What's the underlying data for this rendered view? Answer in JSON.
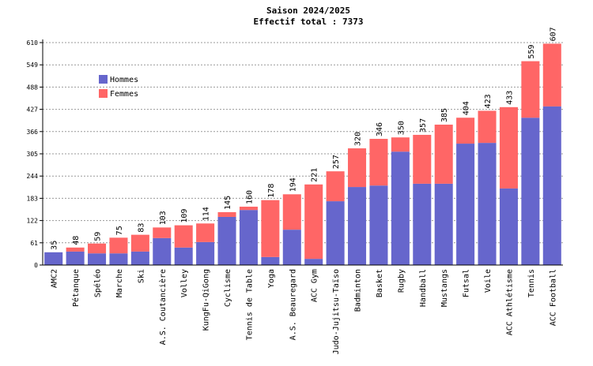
{
  "chart_data": {
    "type": "stacked-bar",
    "title": "Saison 2024/2025",
    "subtitle": "Effectif total : 7373",
    "categories": [
      "AMC2",
      "Pétanque",
      "Spéléo",
      "Marche",
      "Ski",
      "A.S. Coutancière",
      "Volley",
      "KungFu-QiGong",
      "Cyclisme",
      "Tennis de Table",
      "Yoga",
      "A.S. Beauregard",
      "ACC Gym",
      "Judo-Jujitsu-Taïso",
      "Badminton",
      "Basket",
      "Rugby",
      "Handball",
      "Mustangs",
      "Futsal",
      "Voile",
      "ACC Athlétisme",
      "Tennis",
      "ACC Football"
    ],
    "series": [
      {
        "name": "Hommes",
        "color": "#6666cc",
        "values": [
          35,
          37,
          32,
          32,
          37,
          74,
          48,
          63,
          132,
          151,
          22,
          97,
          17,
          175,
          214,
          218,
          311,
          223,
          223,
          333,
          335,
          210,
          404,
          435
        ]
      },
      {
        "name": "Femmes",
        "color": "#ff6666",
        "values": [
          0,
          11,
          27,
          43,
          46,
          29,
          61,
          51,
          13,
          9,
          156,
          97,
          204,
          82,
          106,
          128,
          39,
          134,
          162,
          71,
          88,
          223,
          155,
          172
        ]
      }
    ],
    "totals": [
      35,
      48,
      59,
      75,
      83,
      103,
      109,
      114,
      145,
      160,
      178,
      194,
      221,
      257,
      320,
      346,
      350,
      357,
      385,
      404,
      423,
      433,
      559,
      607
    ],
    "ylim": [
      0,
      610
    ],
    "yticks": [
      0,
      61,
      122,
      183,
      244,
      305,
      366,
      427,
      488,
      549,
      610
    ],
    "grid": true
  }
}
